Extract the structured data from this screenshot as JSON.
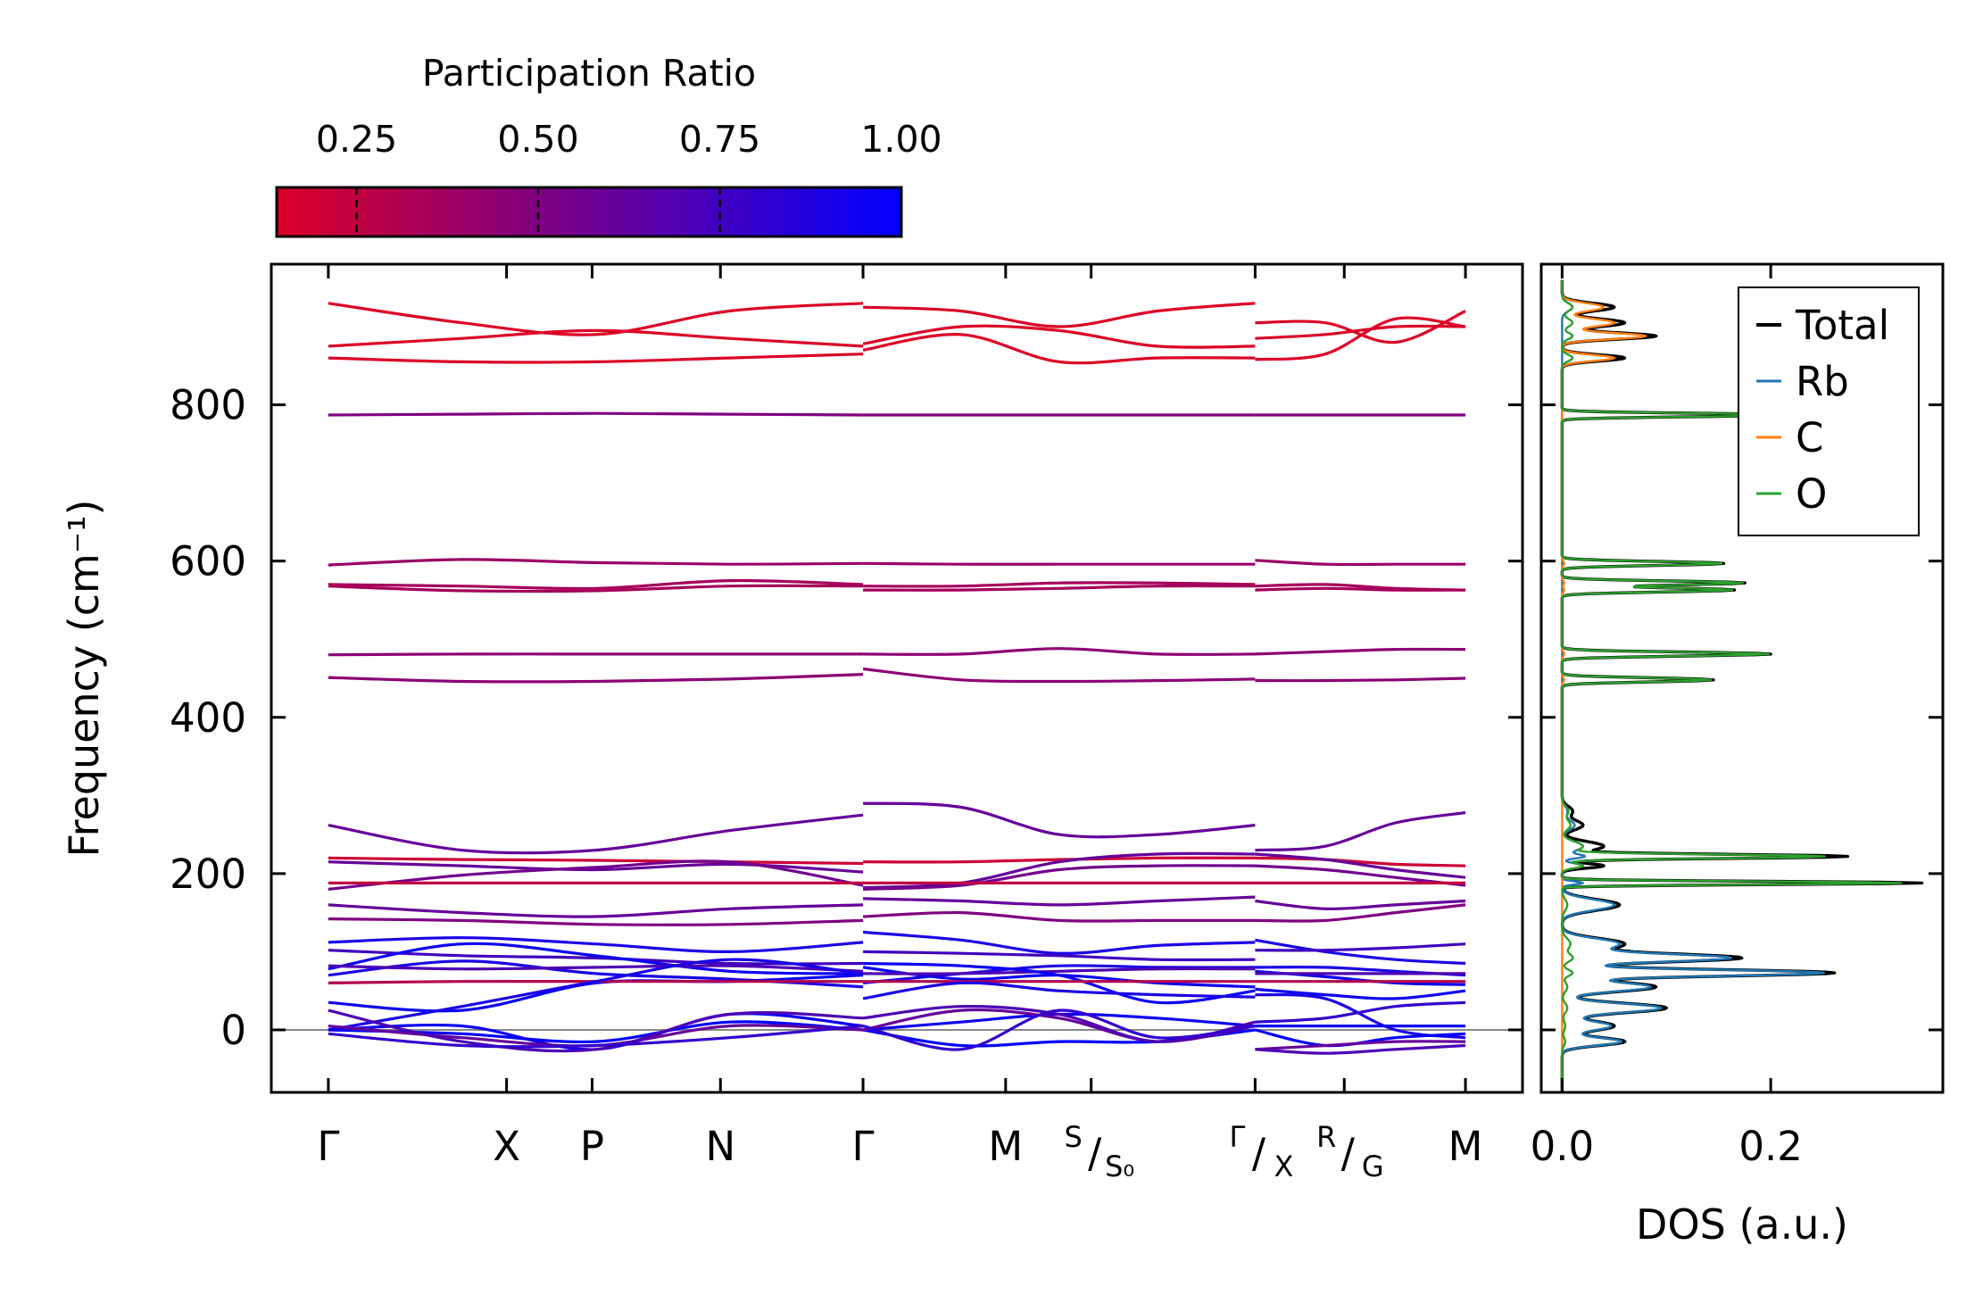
{
  "chart_data": [
    {
      "type": "line",
      "name": "phonon-band-structure",
      "ylabel": "Frequency (cm⁻¹)",
      "ylim": [
        -80,
        980
      ],
      "yticks": [
        0,
        200,
        400,
        600,
        800
      ],
      "ytick_labels": [
        "0",
        "200",
        "400",
        "600",
        "800"
      ],
      "kpoint_labels": [
        {
          "main": "Γ",
          "sub": ""
        },
        {
          "main": "X",
          "sub": ""
        },
        {
          "main": "P",
          "sub": ""
        },
        {
          "main": "N",
          "sub": ""
        },
        {
          "main": "Γ",
          "sub": ""
        },
        {
          "main": "M",
          "sub": ""
        },
        {
          "main": "S",
          "sub": "S₀"
        },
        {
          "main": "Γ",
          "sub": "X"
        },
        {
          "main": "R",
          "sub": "G"
        },
        {
          "main": "M",
          "sub": ""
        }
      ],
      "kpoint_positions": [
        0,
        1.0,
        1.48,
        2.2,
        3.0,
        3.8,
        4.28,
        5.2,
        5.7,
        6.38
      ],
      "x_range": [
        -0.32,
        6.7
      ],
      "segments": [
        [
          0,
          3.0
        ],
        [
          3.0,
          5.2
        ],
        [
          5.2,
          6.38
        ]
      ],
      "zero_line": 0,
      "bands": [
        {
          "pr": 0.05,
          "seg": [
            [
              930,
              905,
              890,
              920,
              930
            ],
            [
              925,
              920,
              900,
              920,
              930
            ],
            [
              905,
              905,
              880,
              920
            ]
          ]
        },
        {
          "pr": 0.05,
          "seg": [
            [
              875,
              885,
              895,
              885,
              875
            ],
            [
              878,
              900,
              895,
              875,
              875
            ],
            [
              885,
              890,
              900,
              900
            ]
          ]
        },
        {
          "pr": 0.05,
          "seg": [
            [
              860,
              855,
              855,
              860,
              865
            ],
            [
              870,
              890,
              855,
              860,
              860
            ],
            [
              858,
              865,
              910,
              900
            ]
          ]
        },
        {
          "pr": 0.5,
          "seg": [
            [
              787,
              788,
              789,
              788,
              787
            ],
            [
              787,
              787,
              787,
              787,
              787
            ],
            [
              787,
              787,
              787,
              787
            ]
          ]
        },
        {
          "pr": 0.4,
          "seg": [
            [
              595,
              602,
              598,
              596,
              597
            ],
            [
              597,
              596,
              596,
              596,
              596
            ],
            [
              601,
              596,
              596,
              596
            ]
          ]
        },
        {
          "pr": 0.35,
          "seg": [
            [
              570,
              568,
              565,
              575,
              570
            ],
            [
              568,
              568,
              572,
              572,
              570
            ],
            [
              568,
              570,
              565,
              563
            ]
          ]
        },
        {
          "pr": 0.35,
          "seg": [
            [
              568,
              562,
              562,
              568,
              568
            ],
            [
              563,
              563,
              565,
              568,
              568
            ],
            [
              563,
              565,
              563,
              563
            ]
          ]
        },
        {
          "pr": 0.45,
          "seg": [
            [
              480,
              481,
              481,
              481,
              481
            ],
            [
              481,
              481,
              488,
              481,
              481
            ],
            [
              481,
              484,
              487,
              487
            ]
          ]
        },
        {
          "pr": 0.45,
          "seg": [
            [
              451,
              446,
              446,
              449,
              455
            ],
            [
              462,
              448,
              446,
              447,
              449
            ],
            [
              447,
              447,
              448,
              450
            ]
          ]
        },
        {
          "pr": 0.6,
          "seg": [
            [
              262,
              230,
              230,
              255,
              275
            ],
            [
              290,
              285,
              250,
              250,
              262
            ],
            [
              230,
              235,
              265,
              278
            ]
          ]
        },
        {
          "pr": 0.2,
          "seg": [
            [
              220,
              218,
              217,
              215,
              213
            ],
            [
              215,
              215,
              218,
              220,
              220
            ],
            [
              220,
              218,
              212,
              210
            ]
          ]
        },
        {
          "pr": 0.6,
          "seg": [
            [
              215,
              210,
              205,
              212,
              202
            ],
            [
              182,
              188,
              215,
              225,
              225
            ],
            [
              225,
              218,
              205,
              195
            ]
          ]
        },
        {
          "pr": 0.55,
          "seg": [
            [
              180,
              198,
              208,
              215,
              185
            ],
            [
              180,
              185,
              205,
              210,
              210
            ],
            [
              210,
              205,
              195,
              185
            ]
          ]
        },
        {
          "pr": 0.25,
          "seg": [
            [
              188,
              188,
              188,
              188,
              188
            ],
            [
              188,
              188,
              188,
              188,
              188
            ],
            [
              188,
              188,
              188,
              188
            ]
          ]
        },
        {
          "pr": 0.6,
          "seg": [
            [
              160,
              150,
              145,
              155,
              160
            ],
            [
              168,
              165,
              160,
              165,
              170
            ],
            [
              165,
              155,
              160,
              165
            ]
          ]
        },
        {
          "pr": 0.5,
          "seg": [
            [
              142,
              140,
              135,
              135,
              140
            ],
            [
              145,
              150,
              140,
              140,
              140
            ],
            [
              140,
              140,
              150,
              160
            ]
          ]
        },
        {
          "pr": 0.9,
          "seg": [
            [
              112,
              118,
              110,
              100,
              112
            ],
            [
              125,
              115,
              98,
              108,
              112
            ],
            [
              115,
              100,
              90,
              85
            ]
          ]
        },
        {
          "pr": 0.75,
          "seg": [
            [
              102,
              95,
              92,
              85,
              85
            ],
            [
              100,
              98,
              95,
              90,
              90
            ],
            [
              102,
              102,
              105,
              110
            ]
          ]
        },
        {
          "pr": 0.95,
          "seg": [
            [
              78,
              110,
              95,
              75,
              72
            ],
            [
              80,
              65,
              70,
              60,
              55
            ],
            [
              75,
              68,
              60,
              58
            ]
          ]
        },
        {
          "pr": 0.9,
          "seg": [
            [
              70,
              88,
              72,
              65,
              55
            ],
            [
              60,
              72,
              82,
              80,
              80
            ],
            [
              80,
              80,
              75,
              70
            ]
          ]
        },
        {
          "pr": 0.7,
          "seg": [
            [
              82,
              78,
              80,
              82,
              75
            ],
            [
              72,
              72,
              75,
              78,
              78
            ],
            [
              72,
              72,
              72,
              72
            ]
          ]
        },
        {
          "pr": 0.95,
          "seg": [
            [
              35,
              25,
              60,
              62,
              70
            ],
            [
              85,
              82,
              70,
              35,
              50
            ],
            [
              52,
              45,
              40,
              50
            ]
          ]
        },
        {
          "pr": 0.3,
          "seg": [
            [
              60,
              62,
              62,
              62,
              62
            ],
            [
              62,
              62,
              62,
              62,
              62
            ],
            [
              62,
              62,
              62,
              62
            ]
          ]
        },
        {
          "pr": 0.9,
          "seg": [
            [
              0,
              30,
              62,
              90,
              72
            ],
            [
              40,
              60,
              50,
              45,
              42
            ],
            [
              45,
              40,
              0,
              -10
            ]
          ]
        },
        {
          "pr": 1.0,
          "seg": [
            [
              0,
              -5,
              -15,
              10,
              0
            ],
            [
              0,
              -20,
              -15,
              -15,
              0
            ],
            [
              0,
              -20,
              -10,
              -5
            ]
          ]
        },
        {
          "pr": 0.95,
          "seg": [
            [
              0,
              5,
              -25,
              20,
              5
            ],
            [
              0,
              10,
              20,
              15,
              5
            ],
            [
              5,
              5,
              5,
              5
            ]
          ]
        },
        {
          "pr": 0.6,
          "seg": [
            [
              5,
              -10,
              -20,
              5,
              0
            ],
            [
              0,
              25,
              15,
              -15,
              5
            ],
            [
              -25,
              -20,
              -15,
              -15
            ]
          ]
        },
        {
          "pr": 0.7,
          "seg": [
            [
              25,
              -15,
              -25,
              20,
              15
            ],
            [
              15,
              30,
              20,
              -15,
              10
            ],
            [
              -25,
              -30,
              -25,
              -20
            ]
          ]
        },
        {
          "pr": 0.8,
          "seg": [
            [
              -5,
              -20,
              -20,
              -10,
              5
            ],
            [
              5,
              -25,
              25,
              -10,
              5
            ],
            [
              10,
              15,
              30,
              35
            ]
          ]
        }
      ]
    },
    {
      "type": "line",
      "name": "density-of-states",
      "xlabel": "DOS (a.u.)",
      "xlim": [
        -0.02,
        0.365
      ],
      "xticks": [
        0.0,
        0.2
      ],
      "xtick_labels": [
        "0.0",
        "0.2"
      ],
      "legend": {
        "position": "top-right",
        "entries": [
          "Total",
          "Rb",
          "C",
          "O"
        ]
      },
      "colors": {
        "Total": "#000000",
        "Rb": "#1f77b4",
        "C": "#ff7f0e",
        "O": "#2ca02c"
      },
      "peaks": [
        {
          "center": 925,
          "width": 5,
          "total": 0.05,
          "Rb": 0.01,
          "C": 0.04,
          "O": 0.01
        },
        {
          "center": 905,
          "width": 5,
          "total": 0.06,
          "Rb": 0.0,
          "C": 0.05,
          "O": 0.01
        },
        {
          "center": 888,
          "width": 4,
          "total": 0.09,
          "Rb": 0.0,
          "C": 0.08,
          "O": 0.01
        },
        {
          "center": 860,
          "width": 4,
          "total": 0.06,
          "Rb": 0.0,
          "C": 0.05,
          "O": 0.01
        },
        {
          "center": 787,
          "width": 2.2,
          "total": 0.215,
          "Rb": 0.0,
          "C": 0.0,
          "O": 0.215
        },
        {
          "center": 597,
          "width": 2.5,
          "total": 0.155,
          "Rb": 0.0,
          "C": 0.002,
          "O": 0.153
        },
        {
          "center": 572,
          "width": 2.5,
          "total": 0.175,
          "Rb": 0.0,
          "C": 0.002,
          "O": 0.173
        },
        {
          "center": 563,
          "width": 2.5,
          "total": 0.165,
          "Rb": 0.0,
          "C": 0.002,
          "O": 0.163
        },
        {
          "center": 481,
          "width": 2.5,
          "total": 0.2,
          "Rb": 0.0,
          "C": 0.002,
          "O": 0.198
        },
        {
          "center": 448,
          "width": 2.5,
          "total": 0.145,
          "Rb": 0.0,
          "C": 0.002,
          "O": 0.143
        },
        {
          "center": 280,
          "width": 6,
          "total": 0.01,
          "Rb": 0.005,
          "C": 0.0,
          "O": 0.006
        },
        {
          "center": 262,
          "width": 6,
          "total": 0.02,
          "Rb": 0.012,
          "C": 0.0,
          "O": 0.008
        },
        {
          "center": 235,
          "width": 6,
          "total": 0.04,
          "Rb": 0.02,
          "C": 0.0,
          "O": 0.02
        },
        {
          "center": 222,
          "width": 2.5,
          "total": 0.27,
          "Rb": 0.02,
          "C": 0.0,
          "O": 0.25
        },
        {
          "center": 210,
          "width": 3,
          "total": 0.04,
          "Rb": 0.02,
          "C": 0.0,
          "O": 0.02
        },
        {
          "center": 188,
          "width": 2,
          "total": 0.345,
          "Rb": 0.02,
          "C": 0.0,
          "O": 0.325
        },
        {
          "center": 160,
          "width": 7,
          "total": 0.055,
          "Rb": 0.05,
          "C": 0.0,
          "O": 0.005
        },
        {
          "center": 110,
          "width": 7,
          "total": 0.06,
          "Rb": 0.055,
          "C": 0.0,
          "O": 0.008
        },
        {
          "center": 92,
          "width": 5,
          "total": 0.17,
          "Rb": 0.16,
          "C": 0.0,
          "O": 0.01
        },
        {
          "center": 73,
          "width": 4,
          "total": 0.26,
          "Rb": 0.25,
          "C": 0.0,
          "O": 0.01
        },
        {
          "center": 55,
          "width": 6,
          "total": 0.09,
          "Rb": 0.085,
          "C": 0.0,
          "O": 0.005
        },
        {
          "center": 28,
          "width": 6,
          "total": 0.1,
          "Rb": 0.095,
          "C": 0.0,
          "O": 0.005
        },
        {
          "center": 5,
          "width": 6,
          "total": 0.05,
          "Rb": 0.047,
          "C": 0.0,
          "O": 0.003
        },
        {
          "center": -15,
          "width": 5,
          "total": 0.06,
          "Rb": 0.057,
          "C": 0.0,
          "O": 0.003
        }
      ]
    }
  ],
  "colorbar": {
    "title": "Participation Ratio",
    "ticks": [
      0.25,
      0.5,
      0.75,
      1.0
    ],
    "tick_labels": [
      "0.25",
      "0.50",
      "0.75",
      "1.00"
    ],
    "range": [
      0.14,
      1.0
    ],
    "colors": {
      "low": "#dc0026",
      "high": "#0000ff"
    }
  }
}
